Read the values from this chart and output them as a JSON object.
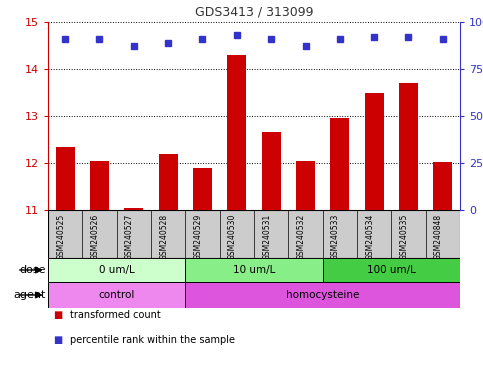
{
  "title": "GDS3413 / 313099",
  "samples": [
    "GSM240525",
    "GSM240526",
    "GSM240527",
    "GSM240528",
    "GSM240529",
    "GSM240530",
    "GSM240531",
    "GSM240532",
    "GSM240533",
    "GSM240534",
    "GSM240535",
    "GSM240848"
  ],
  "bar_values": [
    12.35,
    12.05,
    11.05,
    12.2,
    11.9,
    14.3,
    12.67,
    12.05,
    12.95,
    13.5,
    13.7,
    12.02
  ],
  "percentile_values": [
    91,
    91,
    87,
    89,
    91,
    93,
    91,
    87,
    91,
    92,
    92,
    91
  ],
  "bar_color": "#cc0000",
  "percentile_color": "#3333cc",
  "ylim_left": [
    11,
    15
  ],
  "yticks_left": [
    11,
    12,
    13,
    14,
    15
  ],
  "ylim_right": [
    0,
    100
  ],
  "yticks_right": [
    0,
    25,
    50,
    75,
    100
  ],
  "right_yticklabels": [
    "0",
    "25",
    "50",
    "75",
    "100%"
  ],
  "dose_groups": [
    {
      "label": "0 um/L",
      "start": 0,
      "end": 4,
      "color": "#ccffcc"
    },
    {
      "label": "10 um/L",
      "start": 4,
      "end": 8,
      "color": "#88ee88"
    },
    {
      "label": "100 um/L",
      "start": 8,
      "end": 12,
      "color": "#44cc44"
    }
  ],
  "agent_groups": [
    {
      "label": "control",
      "start": 0,
      "end": 4,
      "color": "#ee88ee"
    },
    {
      "label": "homocysteine",
      "start": 4,
      "end": 12,
      "color": "#dd55dd"
    }
  ],
  "legend_items": [
    {
      "label": "transformed count",
      "color": "#cc0000"
    },
    {
      "label": "percentile rank within the sample",
      "color": "#3333cc"
    }
  ],
  "background_color": "#ffffff",
  "label_area_color": "#cccccc",
  "title_color": "#333333"
}
